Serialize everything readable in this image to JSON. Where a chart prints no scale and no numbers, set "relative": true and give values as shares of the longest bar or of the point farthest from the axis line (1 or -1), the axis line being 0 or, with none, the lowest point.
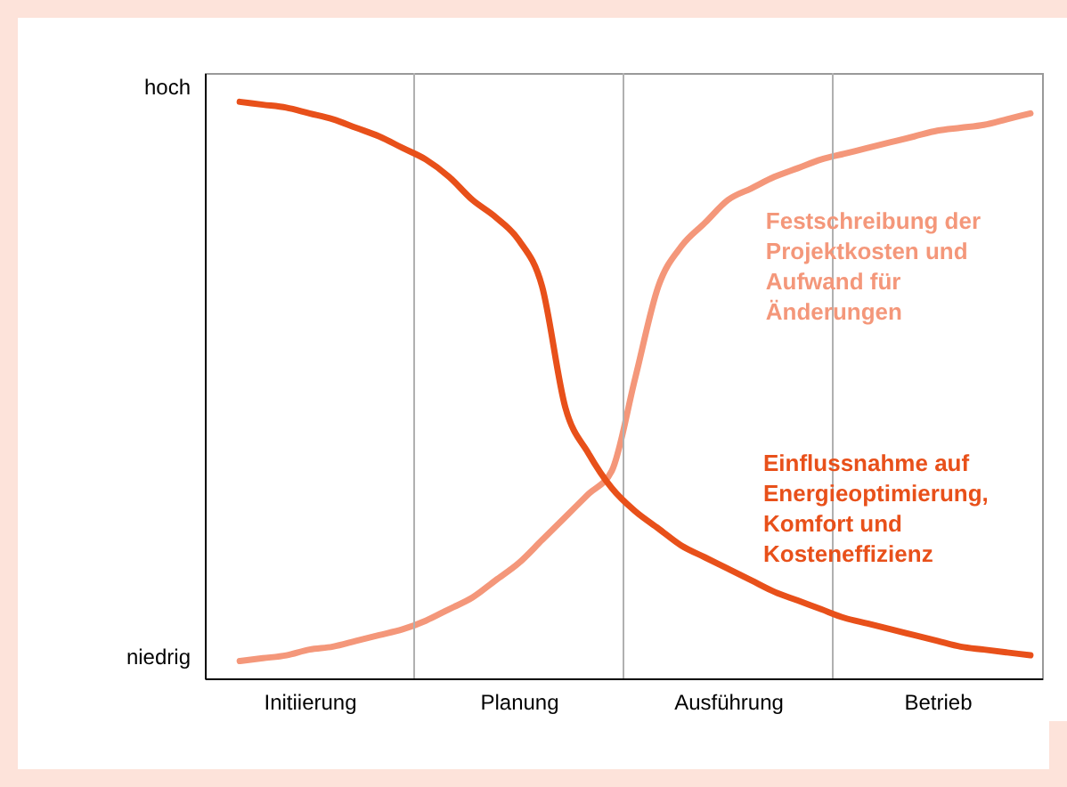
{
  "chart_data": {
    "type": "line",
    "relative": true,
    "categories": [
      null,
      null,
      null,
      null,
      "Initiierung",
      null,
      null,
      null,
      null,
      null,
      null,
      null,
      null,
      "Planung",
      null,
      null,
      null,
      null,
      null,
      null,
      null,
      null,
      "Ausführung",
      null,
      null,
      null,
      null,
      null,
      null,
      null,
      null,
      "Betrieb",
      null,
      null,
      null,
      null
    ],
    "annotations": [
      "hoch",
      "niedrig"
    ],
    "grid": "x",
    "legend": false,
    "marker": "none",
    "line_style": "solid",
    "series": [
      {
        "name": "Festschreibung der Projektkosten und Aufwand für Änderungen",
        "color": "#f4977a",
        "values": [
          null,
          0.03,
          0.035,
          0.04,
          0.05,
          0.055,
          0.065,
          0.075,
          0.085,
          0.1,
          0.12,
          0.14,
          0.17,
          0.2,
          0.24,
          0.28,
          0.32,
          0.36,
          0.52,
          0.68,
          0.75,
          0.79,
          0.83,
          0.85,
          0.87,
          0.885,
          0.9,
          0.91,
          0.92,
          0.93,
          0.94,
          0.95,
          0.955,
          0.96,
          0.97,
          0.98
        ]
      },
      {
        "name": "Einflussnahme auf Energieoptimierung, Komfort und Kosteneffizienz",
        "color": "#e8501a",
        "values": [
          null,
          1,
          0.995,
          0.99,
          0.98,
          0.97,
          0.955,
          0.94,
          0.92,
          0.9,
          0.87,
          0.83,
          0.8,
          0.76,
          0.68,
          0.47,
          0.39,
          0.33,
          0.29,
          0.26,
          0.23,
          0.21,
          0.19,
          0.17,
          0.15,
          0.135,
          0.12,
          0.105,
          0.095,
          0.085,
          0.075,
          0.065,
          0.055,
          0.05,
          0.045,
          0.04
        ]
      }
    ]
  }
}
